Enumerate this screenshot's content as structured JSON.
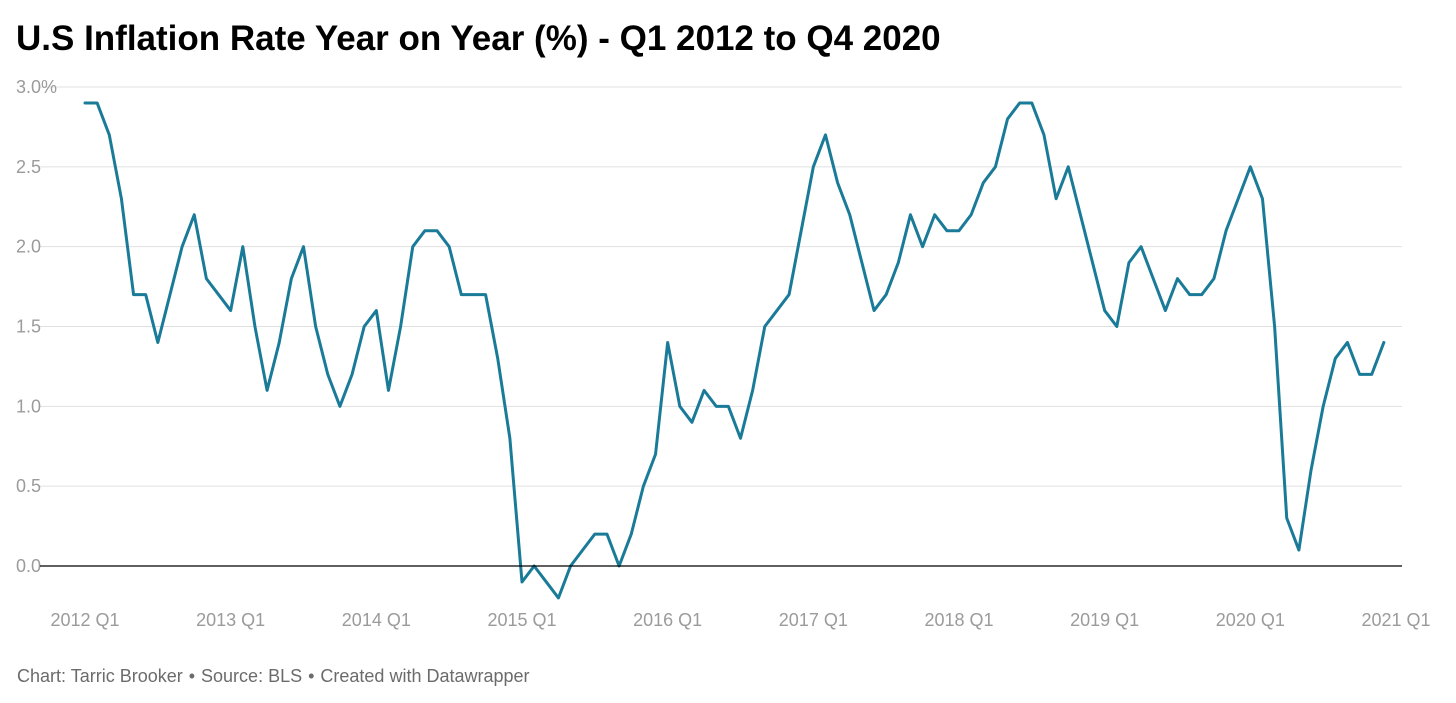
{
  "chart_data": {
    "type": "line",
    "title": "U.S Inflation Rate Year on Year (%) - Q1 2012 to Q4 2020",
    "xlabel": "",
    "ylabel": "",
    "ylim": [
      -0.2,
      3.0
    ],
    "grid": true,
    "legend": "none",
    "y_ticks": [
      {
        "value": 3.0,
        "label": "3.0%"
      },
      {
        "value": 2.5,
        "label": "2.5"
      },
      {
        "value": 2.0,
        "label": "2.0"
      },
      {
        "value": 1.5,
        "label": "1.5"
      },
      {
        "value": 1.0,
        "label": "1.0"
      },
      {
        "value": 0.5,
        "label": "0.5"
      },
      {
        "value": 0.0,
        "label": "0.0"
      }
    ],
    "x_ticks": [
      {
        "value": "2012-01",
        "label": "2012 Q1"
      },
      {
        "value": "2013-01",
        "label": "2013 Q1"
      },
      {
        "value": "2014-01",
        "label": "2014 Q1"
      },
      {
        "value": "2015-01",
        "label": "2015 Q1"
      },
      {
        "value": "2016-01",
        "label": "2016 Q1"
      },
      {
        "value": "2017-01",
        "label": "2017 Q1"
      },
      {
        "value": "2018-01",
        "label": "2018 Q1"
      },
      {
        "value": "2019-01",
        "label": "2019 Q1"
      },
      {
        "value": "2020-01",
        "label": "2020 Q1"
      },
      {
        "value": "2021-01",
        "label": "2021 Q1"
      }
    ],
    "x": [
      "2012-01",
      "2012-02",
      "2012-03",
      "2012-04",
      "2012-05",
      "2012-06",
      "2012-07",
      "2012-08",
      "2012-09",
      "2012-10",
      "2012-11",
      "2012-12",
      "2013-01",
      "2013-02",
      "2013-03",
      "2013-04",
      "2013-05",
      "2013-06",
      "2013-07",
      "2013-08",
      "2013-09",
      "2013-10",
      "2013-11",
      "2013-12",
      "2014-01",
      "2014-02",
      "2014-03",
      "2014-04",
      "2014-05",
      "2014-06",
      "2014-07",
      "2014-08",
      "2014-09",
      "2014-10",
      "2014-11",
      "2014-12",
      "2015-01",
      "2015-02",
      "2015-03",
      "2015-04",
      "2015-05",
      "2015-06",
      "2015-07",
      "2015-08",
      "2015-09",
      "2015-10",
      "2015-11",
      "2015-12",
      "2016-01",
      "2016-02",
      "2016-03",
      "2016-04",
      "2016-05",
      "2016-06",
      "2016-07",
      "2016-08",
      "2016-09",
      "2016-10",
      "2016-11",
      "2016-12",
      "2017-01",
      "2017-02",
      "2017-03",
      "2017-04",
      "2017-05",
      "2017-06",
      "2017-07",
      "2017-08",
      "2017-09",
      "2017-10",
      "2017-11",
      "2017-12",
      "2018-01",
      "2018-02",
      "2018-03",
      "2018-04",
      "2018-05",
      "2018-06",
      "2018-07",
      "2018-08",
      "2018-09",
      "2018-10",
      "2018-11",
      "2018-12",
      "2019-01",
      "2019-02",
      "2019-03",
      "2019-04",
      "2019-05",
      "2019-06",
      "2019-07",
      "2019-08",
      "2019-09",
      "2019-10",
      "2019-11",
      "2019-12",
      "2020-01",
      "2020-02",
      "2020-03",
      "2020-04",
      "2020-05",
      "2020-06",
      "2020-07",
      "2020-08",
      "2020-09",
      "2020-10",
      "2020-11",
      "2020-12"
    ],
    "series": [
      {
        "color": "#1a7b98",
        "values": [
          2.9,
          2.9,
          2.7,
          2.3,
          1.7,
          1.7,
          1.4,
          1.7,
          2.0,
          2.2,
          1.8,
          1.7,
          1.6,
          2.0,
          1.5,
          1.1,
          1.4,
          1.8,
          2.0,
          1.5,
          1.2,
          1.0,
          1.2,
          1.5,
          1.6,
          1.1,
          1.5,
          2.0,
          2.1,
          2.1,
          2.0,
          1.7,
          1.7,
          1.7,
          1.3,
          0.8,
          -0.1,
          0.0,
          -0.1,
          -0.2,
          0.0,
          0.1,
          0.2,
          0.2,
          0.0,
          0.2,
          0.5,
          0.7,
          1.4,
          1.0,
          0.9,
          1.1,
          1.0,
          1.0,
          0.8,
          1.1,
          1.5,
          1.6,
          1.7,
          2.1,
          2.5,
          2.7,
          2.4,
          2.2,
          1.9,
          1.6,
          1.7,
          1.9,
          2.2,
          2.0,
          2.2,
          2.1,
          2.1,
          2.2,
          2.4,
          2.5,
          2.8,
          2.9,
          2.9,
          2.7,
          2.3,
          2.5,
          2.2,
          1.9,
          1.6,
          1.5,
          1.9,
          2.0,
          1.8,
          1.6,
          1.8,
          1.7,
          1.7,
          1.8,
          2.1,
          2.3,
          2.5,
          2.3,
          1.5,
          0.3,
          0.1,
          0.6,
          1.0,
          1.3,
          1.4,
          1.2,
          1.2,
          1.4
        ]
      }
    ]
  },
  "footer": {
    "chart_credit": "Chart: Tarric Brooker",
    "source": "Source: BLS",
    "created_with": "Created with Datawrapper",
    "separator": "•"
  },
  "colors": {
    "line": "#1a7b98",
    "grid": "#e0e0e0",
    "baseline": "#000000",
    "tick_text": "#9b9b9b",
    "footer_text": "#6b6b6b"
  }
}
